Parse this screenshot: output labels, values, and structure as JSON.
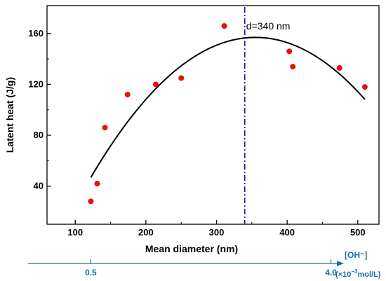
{
  "chart_data": {
    "type": "scatter",
    "xlabel": "Mean diameter (nm)",
    "ylabel": "Latent heat (J/g)",
    "xlim": [
      60,
      530
    ],
    "ylim": [
      10,
      182
    ],
    "x_ticks": [
      100,
      200,
      300,
      400,
      500
    ],
    "y_ticks": [
      40,
      80,
      120,
      160
    ],
    "grid": false,
    "series": [
      {
        "kind": "points",
        "color": "#e3120b",
        "points": [
          {
            "x": 122,
            "y": 28
          },
          {
            "x": 131,
            "y": 42
          },
          {
            "x": 142,
            "y": 86
          },
          {
            "x": 174,
            "y": 112
          },
          {
            "x": 214,
            "y": 120
          },
          {
            "x": 250,
            "y": 125
          },
          {
            "x": 311,
            "y": 166
          },
          {
            "x": 403,
            "y": 146
          },
          {
            "x": 408,
            "y": 134
          },
          {
            "x": 474,
            "y": 133
          },
          {
            "x": 510,
            "y": 118
          }
        ]
      },
      {
        "kind": "fit",
        "color": "#000000",
        "shape": "quadratic",
        "x_range": [
          122,
          510
        ],
        "vertex": {
          "x": 355,
          "y": 157
        },
        "coefficient": -0.00203
      }
    ],
    "reference_line": {
      "x": 340,
      "label": "d=340 nm",
      "color": "#1f1f8f",
      "style": "dash-dot"
    },
    "secondary_axis": {
      "color": "#1a6fa8",
      "label": "[OH⁻]",
      "unit_prefix": "(×10",
      "unit_exp": "−3",
      "unit_suffix": "mol/L)",
      "tick_labels": [
        {
          "at_x": 122,
          "text": "0.5"
        },
        {
          "at_x": 462,
          "text": "4.0"
        }
      ]
    }
  }
}
